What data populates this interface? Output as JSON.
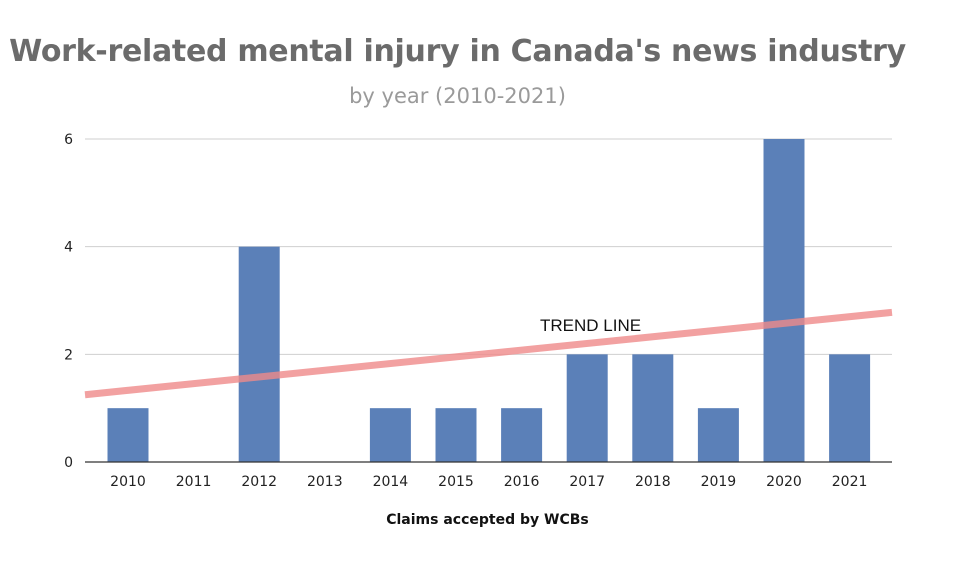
{
  "chart_data": {
    "type": "bar",
    "title": "Work-related mental injury in Canada's news industry",
    "subtitle": "by  year (2010-2021)",
    "xlabel": "Claims accepted by WCBs",
    "ylabel": "",
    "categories": [
      "2010",
      "2011",
      "2012",
      "2013",
      "2014",
      "2015",
      "2016",
      "2017",
      "2018",
      "2019",
      "2020",
      "2021"
    ],
    "values": [
      1,
      0,
      4,
      0,
      1,
      1,
      1,
      2,
      2,
      1,
      6,
      2
    ],
    "ylim": [
      0,
      6
    ],
    "yticks": [
      "0",
      "2",
      "4",
      "6"
    ],
    "grid": true,
    "bar_color": "#5b80b8",
    "trend": {
      "label": "TREND LINE",
      "start_value": 1.25,
      "end_value": 2.78,
      "color": "#ef8a8a"
    }
  }
}
